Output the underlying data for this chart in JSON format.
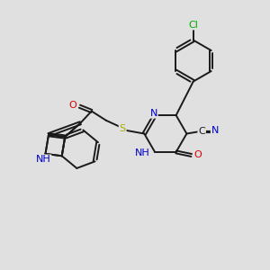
{
  "background_color": "#e0e0e0",
  "bond_color": "#1a1a1a",
  "bond_width": 1.4,
  "dbo": 0.06,
  "atom_colors": {
    "N": "#0000cc",
    "O": "#dd0000",
    "S": "#aaaa00",
    "Cl": "#00aa00",
    "C": "#1a1a1a",
    "H": "#008888"
  },
  "fs": 7.5
}
